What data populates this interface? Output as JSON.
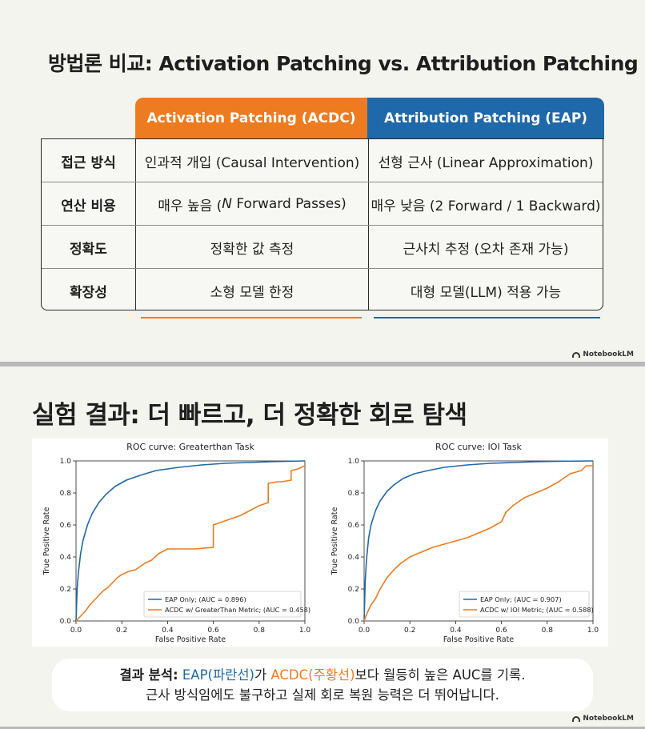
{
  "slide1": {
    "title": "방법론 비교: Activation Patching vs. Attribution Patching",
    "columns": [
      "Activation Patching (ACDC)",
      "Attribution Patching (EAP)"
    ],
    "rows": [
      {
        "label": "접근 방식",
        "acdc": "인과적 개입 (Causal Intervention)",
        "eap": "선형 근사 (Linear Approximation)"
      },
      {
        "label": "연산 비용",
        "acdc_prefix": "매우 높음 (",
        "acdc_italic": "N",
        "acdc_suffix": " Forward Passes)",
        "eap": "매우 낮음 (2 Forward / 1 Backward)"
      },
      {
        "label": "정확도",
        "acdc": "정확한 값 측정",
        "eap": "근사치 추정 (오차 존재 가능)"
      },
      {
        "label": "확장성",
        "acdc": "소형 모델 한정",
        "eap": "대형 모델(LLM) 적용 가능"
      }
    ],
    "logo": "NotebookLM",
    "colors": {
      "acdc": "#ee7b1f",
      "eap": "#1f68a9"
    }
  },
  "slide2": {
    "title": "실험 결과: 더 빠르고, 더 정확한 회로 탐색",
    "summary": {
      "bold": "결과 분석:",
      "eap": "EAP(파란선)",
      "mid1": "가 ",
      "acdc": "ACDC(주황선)",
      "mid2": "보다 월등히 높은 AUC를 기록.",
      "line2": "근사 방식임에도 불구하고 실제 회로 복원 능력은 더 뛰어납니다."
    },
    "logo": "NotebookLM"
  },
  "chart_data": [
    {
      "type": "line",
      "title": "ROC curve: Greaterthan Task",
      "xlabel": "False Positive Rate",
      "ylabel": "True Positive Rate",
      "xlim": [
        0,
        1
      ],
      "ylim": [
        0,
        1
      ],
      "xticks": [
        "0.0",
        "0.2",
        "0.4",
        "0.6",
        "0.8",
        "1.0"
      ],
      "yticks": [
        "0.0",
        "0.2",
        "0.4",
        "0.6",
        "0.8",
        "1.0"
      ],
      "legend_position": "lower right",
      "series": [
        {
          "name": "EAP Only; (AUC = 0.896)",
          "color": "#1f68a9",
          "x": [
            0,
            0.005,
            0.01,
            0.02,
            0.03,
            0.05,
            0.07,
            0.1,
            0.13,
            0.17,
            0.22,
            0.28,
            0.35,
            0.45,
            0.55,
            0.65,
            0.75,
            0.85,
            1.0
          ],
          "y": [
            0,
            0.2,
            0.3,
            0.42,
            0.5,
            0.6,
            0.67,
            0.74,
            0.79,
            0.84,
            0.88,
            0.91,
            0.94,
            0.96,
            0.975,
            0.985,
            0.99,
            0.995,
            1.0
          ]
        },
        {
          "name": "ACDC w/ GreaterThan Metric; (AUC = 0.458)",
          "color": "#ee7b1f",
          "x": [
            0,
            0.02,
            0.04,
            0.06,
            0.08,
            0.1,
            0.12,
            0.14,
            0.16,
            0.18,
            0.2,
            0.23,
            0.26,
            0.3,
            0.33,
            0.36,
            0.4,
            0.44,
            0.48,
            0.52,
            0.6,
            0.6,
            0.64,
            0.68,
            0.72,
            0.76,
            0.8,
            0.84,
            0.84,
            0.88,
            0.9,
            0.94,
            0.94,
            0.97,
            1.0
          ],
          "y": [
            0,
            0.03,
            0.06,
            0.1,
            0.13,
            0.16,
            0.19,
            0.21,
            0.24,
            0.27,
            0.29,
            0.31,
            0.32,
            0.36,
            0.38,
            0.42,
            0.45,
            0.45,
            0.45,
            0.45,
            0.46,
            0.6,
            0.62,
            0.64,
            0.66,
            0.69,
            0.72,
            0.74,
            0.86,
            0.87,
            0.87,
            0.88,
            0.94,
            0.95,
            0.97
          ]
        }
      ]
    },
    {
      "type": "line",
      "title": "ROC curve: IOI Task",
      "xlabel": "False Positive Rate",
      "ylabel": "True Positive Rate",
      "xlim": [
        0,
        1
      ],
      "ylim": [
        0,
        1
      ],
      "xticks": [
        "0.0",
        "0.2",
        "0.4",
        "0.6",
        "0.8",
        "1.0"
      ],
      "yticks": [
        "0.0",
        "0.2",
        "0.4",
        "0.6",
        "0.8",
        "1.0"
      ],
      "legend_position": "lower right",
      "series": [
        {
          "name": "EAP Only; (AUC = 0.907)",
          "color": "#1f68a9",
          "x": [
            0,
            0.005,
            0.01,
            0.02,
            0.03,
            0.05,
            0.07,
            0.1,
            0.13,
            0.17,
            0.22,
            0.28,
            0.35,
            0.45,
            0.55,
            0.65,
            0.75,
            0.85,
            1.0
          ],
          "y": [
            0,
            0.25,
            0.38,
            0.52,
            0.6,
            0.69,
            0.75,
            0.81,
            0.85,
            0.89,
            0.92,
            0.94,
            0.96,
            0.975,
            0.985,
            0.99,
            0.995,
            0.998,
            1.0
          ]
        },
        {
          "name": "ACDC w/ IOI Metric; (AUC = 0.588)",
          "color": "#ee7b1f",
          "x": [
            0,
            0.01,
            0.02,
            0.03,
            0.05,
            0.07,
            0.1,
            0.13,
            0.16,
            0.2,
            0.25,
            0.3,
            0.35,
            0.4,
            0.45,
            0.5,
            0.55,
            0.6,
            0.62,
            0.65,
            0.7,
            0.75,
            0.8,
            0.85,
            0.9,
            0.95,
            0.97,
            1.0
          ],
          "y": [
            0,
            0.04,
            0.07,
            0.1,
            0.14,
            0.2,
            0.27,
            0.32,
            0.36,
            0.4,
            0.43,
            0.46,
            0.48,
            0.5,
            0.52,
            0.55,
            0.58,
            0.62,
            0.68,
            0.72,
            0.77,
            0.8,
            0.83,
            0.87,
            0.92,
            0.94,
            0.97,
            0.97
          ]
        }
      ]
    }
  ]
}
